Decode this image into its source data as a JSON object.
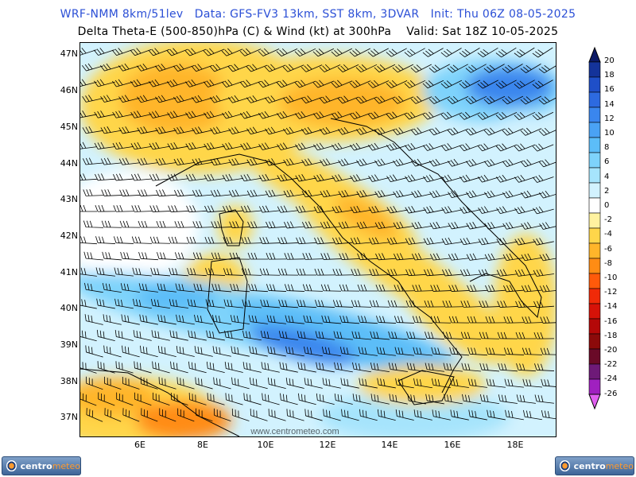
{
  "header": {
    "line1": "WRF-NMM 8km/51lev   Data: GFS-FV3 13km, SST 8km, 3DVAR   Init: Thu 06Z 08-05-2025",
    "line2": "Delta Theta-E (500-850)hPa (C) & Wind (kt) at 300hPa    Valid: Sat 18Z 10-05-2025"
  },
  "axes": {
    "lat_labels": [
      "47N",
      "46N",
      "45N",
      "44N",
      "43N",
      "42N",
      "41N",
      "40N",
      "39N",
      "38N",
      "37N"
    ],
    "lon_labels": [
      "6E",
      "8E",
      "10E",
      "12E",
      "14E",
      "16E",
      "18E"
    ]
  },
  "colorbar": {
    "labels": [
      "20",
      "18",
      "16",
      "14",
      "12",
      "10",
      "8",
      "6",
      "4",
      "2",
      "0",
      "-2",
      "-4",
      "-6",
      "-8",
      "-10",
      "-12",
      "-14",
      "-16",
      "-18",
      "-20",
      "-22",
      "-24",
      "-26"
    ],
    "colors": [
      "#0c1a66",
      "#14339a",
      "#1f4fc8",
      "#2d6ae0",
      "#3a86ee",
      "#4aa2f4",
      "#5cbdf8",
      "#7ed3fb",
      "#a6e4fc",
      "#d2f2fe",
      "#ffffff",
      "#fff2a0",
      "#ffd64a",
      "#ffb52a",
      "#ff8c14",
      "#ff5a0a",
      "#f02a08",
      "#d61208",
      "#b40808",
      "#8c0a0a",
      "#6a0a28",
      "#6e1a78",
      "#a020c0",
      "#e060f0"
    ]
  },
  "watermark": "www.centrometeo.com",
  "logos": {
    "left": {
      "brand": "centro",
      "accent": "meteo"
    },
    "right": {
      "brand": "centro",
      "accent": "meteo"
    }
  }
}
